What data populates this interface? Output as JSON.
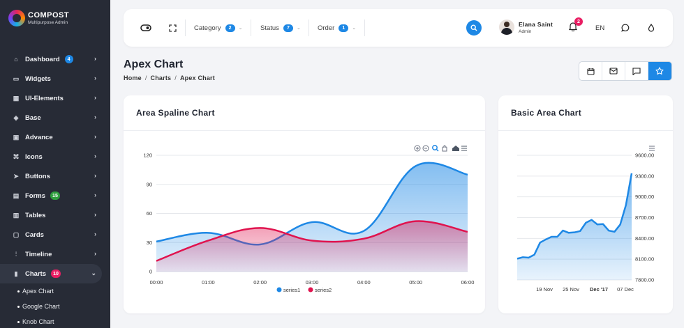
{
  "brand": {
    "name": "COMPOST",
    "subtitle": "Multipurpose Admin"
  },
  "sidebar": {
    "items": [
      {
        "label": "Dashboard",
        "icon": "home-icon",
        "badge": "4",
        "badge_color": "#1e88e5"
      },
      {
        "label": "Widgets",
        "icon": "monitor-icon"
      },
      {
        "label": "UI-Elements",
        "icon": "grid-icon"
      },
      {
        "label": "Base",
        "icon": "cube-icon"
      },
      {
        "label": "Advance",
        "icon": "folder-icon"
      },
      {
        "label": "Icons",
        "icon": "command-icon"
      },
      {
        "label": "Buttons",
        "icon": "cursor-icon"
      },
      {
        "label": "Forms",
        "icon": "file-icon",
        "badge": "15",
        "badge_color": "#2e9e3e"
      },
      {
        "label": "Tables",
        "icon": "table-icon"
      },
      {
        "label": "Cards",
        "icon": "card-icon"
      },
      {
        "label": "Timeline",
        "icon": "sliders-icon"
      },
      {
        "label": "Charts",
        "icon": "bar-chart-icon",
        "badge": "10",
        "badge_color": "#e91e63",
        "active": true
      }
    ],
    "sub_items": [
      "Apex Chart",
      "Google Chart",
      "Knob Chart"
    ]
  },
  "topbar": {
    "filters": [
      {
        "label": "Category",
        "count": "2"
      },
      {
        "label": "Status",
        "count": "7"
      },
      {
        "label": "Order",
        "count": "1"
      }
    ],
    "user_name": "Elana Saint",
    "user_role": "Admin",
    "notifications": "2",
    "language": "EN"
  },
  "header": {
    "title": "Apex Chart",
    "breadcrumb": [
      "Home",
      "Charts",
      "Apex Chart"
    ]
  },
  "colors": {
    "accent": "#1e88e5",
    "series1": "#1e88e5",
    "series2": "#e0134e"
  },
  "chart_data": [
    {
      "type": "area",
      "title": "Area Spaline Chart",
      "x": [
        "00:00",
        "01:00",
        "02:00",
        "03:00",
        "04:00",
        "05:00",
        "06:00"
      ],
      "y_ticks": [
        "0",
        "30",
        "60",
        "90",
        "120"
      ],
      "ylim": [
        0,
        120
      ],
      "series": [
        {
          "name": "series1",
          "values": [
            31,
            40,
            28,
            51,
            42,
            109,
            100
          ]
        },
        {
          "name": "series2",
          "values": [
            11,
            32,
            45,
            32,
            34,
            52,
            41
          ]
        }
      ],
      "legend": "bottom",
      "grid": true
    },
    {
      "type": "area",
      "title": "Basic Area Chart",
      "x_ticks": [
        "19 Nov",
        "25 Nov",
        "Dec '17",
        "07 Dec"
      ],
      "y_ticks": [
        "7800.00",
        "8100.00",
        "8400.00",
        "8700.00",
        "9000.00",
        "9300.00",
        "9600.00"
      ],
      "ylim": [
        7800,
        9600
      ],
      "values": [
        8107,
        8128,
        8122,
        8165,
        8340,
        8385,
        8423,
        8423,
        8514,
        8481,
        8487,
        8506,
        8626,
        8668,
        8602,
        8607,
        8512,
        8496,
        8600,
        8881,
        9340
      ],
      "grid": true
    }
  ]
}
